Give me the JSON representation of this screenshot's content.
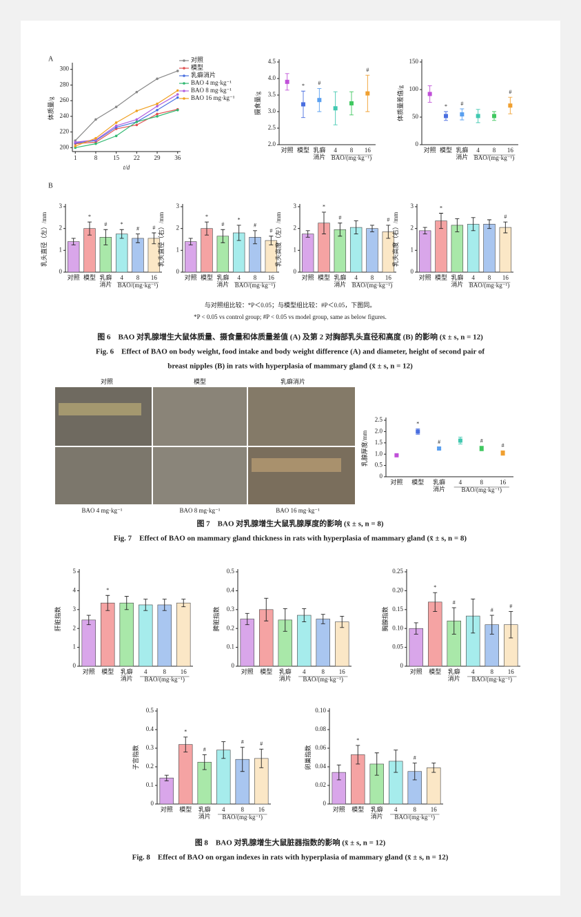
{
  "panel_labels": [
    "A",
    "B"
  ],
  "group_colors": [
    "#d9a6ea",
    "#f5a3a3",
    "#a9e8a9",
    "#a6ecec",
    "#a9c6f0",
    "#fbe7c6"
  ],
  "point_colors": [
    "#c050d8",
    "#4a6fe0",
    "#5aa0f0",
    "#40c8b0",
    "#40c860",
    "#f0a030"
  ],
  "chart_data": [
    {
      "type": "line",
      "ylabel": "体质量/g",
      "xlabel": "t/d",
      "x": [
        1,
        8,
        15,
        22,
        29,
        36
      ],
      "xlim": [
        0,
        37
      ],
      "xticks": [
        1,
        8,
        15,
        22,
        29,
        36
      ],
      "ylim": [
        195,
        305
      ],
      "yticks": [
        200,
        220,
        240,
        260,
        280,
        300
      ],
      "legend": "upper right",
      "series": [
        {
          "name": "对照",
          "color": "#888888",
          "values": [
            209,
            236,
            252,
            271,
            288,
            298
          ]
        },
        {
          "name": "模型",
          "color": "#e05050",
          "values": [
            205,
            207,
            224,
            229,
            243,
            249
          ]
        },
        {
          "name": "乳癖消片",
          "color": "#4a70e0",
          "values": [
            206,
            209,
            226,
            233,
            248,
            264
          ]
        },
        {
          "name": "BAO 4 mg·kg⁻¹",
          "color": "#30b870",
          "values": [
            200,
            205,
            215,
            233,
            240,
            248
          ]
        },
        {
          "name": "BAO 8 mg·kg⁻¹",
          "color": "#b060e0",
          "values": [
            207,
            210,
            228,
            236,
            253,
            268
          ]
        },
        {
          "name": "BAO 16 mg·kg⁻¹",
          "color": "#f0a020",
          "values": [
            202,
            212,
            232,
            247,
            256,
            273
          ]
        }
      ]
    },
    {
      "type": "errorbar",
      "ylabel": "摄食量/g",
      "categories": [
        "对照",
        "模型",
        "乳癖消片",
        "4",
        "8",
        "16"
      ],
      "group_label": "BAO/(mg·kg⁻¹)",
      "ylim": [
        2,
        4.5
      ],
      "yticks": [
        {
          "value": 2,
          "label": "2.0"
        },
        2.5,
        {
          "value": 3,
          "label": "3.0"
        },
        3.5,
        {
          "value": 4,
          "label": "4.0"
        },
        4.5
      ],
      "values": [
        3.9,
        3.22,
        3.35,
        3.1,
        3.25,
        3.55
      ],
      "errors": [
        0.25,
        0.4,
        0.35,
        0.5,
        0.35,
        0.55
      ],
      "annotations": [
        null,
        "*",
        "#",
        null,
        null,
        "#"
      ]
    },
    {
      "type": "errorbar",
      "ylabel": "体质量差值/g",
      "categories": [
        "对照",
        "模型",
        "乳癖消片",
        "4",
        "8",
        "16"
      ],
      "group_label": "BAO/(mg·kg⁻¹)",
      "ylim": [
        0,
        150
      ],
      "yticks": [
        0,
        50,
        100,
        150
      ],
      "values": [
        92,
        52,
        55,
        52,
        52,
        71
      ],
      "errors": [
        15,
        8,
        10,
        12,
        8,
        15
      ],
      "annotations": [
        null,
        "*",
        "#",
        null,
        null,
        "#"
      ]
    },
    {
      "type": "bar",
      "ylabel": "乳头直径（左）/mm",
      "categories": [
        "对照",
        "模型",
        "乳癖消片",
        "4",
        "8",
        "16"
      ],
      "group_label": "BAO/(mg·kg⁻¹)",
      "ylim": [
        0,
        3
      ],
      "yticks": [
        0,
        1,
        2,
        3
      ],
      "values": [
        1.4,
        2.0,
        1.6,
        1.75,
        1.55,
        1.55
      ],
      "errors": [
        0.15,
        0.3,
        0.35,
        0.2,
        0.2,
        0.25
      ],
      "annotations": [
        null,
        "*",
        "#",
        "*",
        "#",
        "#"
      ]
    },
    {
      "type": "bar",
      "ylabel": "乳头直径（右）/mm",
      "categories": [
        "对照",
        "模型",
        "乳癖消片",
        "4",
        "8",
        "16"
      ],
      "group_label": "BAO/(mg·kg⁻¹)",
      "ylim": [
        0,
        3
      ],
      "yticks": [
        0,
        1,
        2,
        3
      ],
      "values": [
        1.4,
        2.0,
        1.65,
        1.8,
        1.6,
        1.45
      ],
      "errors": [
        0.15,
        0.3,
        0.3,
        0.35,
        0.3,
        0.2
      ],
      "annotations": [
        null,
        "*",
        "#",
        "*",
        "#",
        "#"
      ]
    },
    {
      "type": "bar",
      "ylabel": "乳头高度（左）/mm",
      "categories": [
        "对照",
        "模型",
        "乳癖消片",
        "4",
        "8",
        "16"
      ],
      "group_label": "BAO/(mg·kg⁻¹)",
      "ylim": [
        0,
        3
      ],
      "yticks": [
        0,
        1,
        2,
        3
      ],
      "values": [
        1.75,
        2.25,
        1.95,
        2.05,
        2.0,
        1.85
      ],
      "errors": [
        0.15,
        0.5,
        0.3,
        0.3,
        0.15,
        0.3
      ],
      "annotations": [
        null,
        "*",
        "#",
        null,
        null,
        "#"
      ]
    },
    {
      "type": "bar",
      "ylabel": "乳头高度（右）/mm",
      "categories": [
        "对照",
        "模型",
        "乳癖消片",
        "4",
        "8",
        "16"
      ],
      "group_label": "BAO/(mg·kg⁻¹)",
      "ylim": [
        0,
        3
      ],
      "yticks": [
        0,
        1,
        2,
        3
      ],
      "values": [
        1.9,
        2.35,
        2.15,
        2.2,
        2.2,
        2.05
      ],
      "errors": [
        0.15,
        0.35,
        0.3,
        0.3,
        0.2,
        0.25
      ],
      "annotations": [
        null,
        "*",
        null,
        null,
        null,
        "#"
      ]
    },
    {
      "type": "errorbar",
      "ylabel": "乳腺厚度/mm",
      "categories": [
        "对照",
        "模型",
        "乳癖消片",
        "4",
        "8",
        "16"
      ],
      "group_label": "BAO/(mg·kg⁻¹)",
      "ylim": [
        0,
        2.5
      ],
      "yticks": [
        0,
        0.5,
        {
          "value": 1,
          "label": "1.0"
        },
        1.5,
        {
          "value": 2,
          "label": "2.0"
        },
        2.5
      ],
      "values": [
        0.95,
        2.0,
        1.25,
        1.6,
        1.25,
        1.05
      ],
      "errors": [
        0,
        0.12,
        0.05,
        0.15,
        0.1,
        0.1
      ],
      "annotations": [
        null,
        "*",
        "#",
        null,
        "#",
        "#"
      ]
    },
    {
      "type": "bar",
      "ylabel": "肝脏指数",
      "categories": [
        "对照",
        "模型",
        "乳癖消片",
        "4",
        "8",
        "16"
      ],
      "group_label": "BAO/(mg·kg⁻¹)",
      "ylim": [
        0,
        5
      ],
      "yticks": [
        0,
        1,
        2,
        3,
        4,
        5
      ],
      "values": [
        2.45,
        3.35,
        3.35,
        3.25,
        3.25,
        3.35
      ],
      "errors": [
        0.25,
        0.4,
        0.35,
        0.3,
        0.3,
        0.2
      ],
      "annotations": [
        null,
        "*",
        null,
        null,
        null,
        null
      ]
    },
    {
      "type": "bar",
      "ylabel": "脾脏指数",
      "categories": [
        "对照",
        "模型",
        "乳癖消片",
        "4",
        "8",
        "16"
      ],
      "group_label": "BAO/(mg·kg⁻¹)",
      "ylim": [
        0,
        0.5
      ],
      "yticks": [
        0,
        0.1,
        0.2,
        0.3,
        0.4,
        0.5
      ],
      "values": [
        0.25,
        0.3,
        0.245,
        0.27,
        0.25,
        0.235
      ],
      "errors": [
        0.03,
        0.06,
        0.06,
        0.035,
        0.025,
        0.03
      ],
      "annotations": [
        null,
        null,
        null,
        null,
        null,
        null
      ]
    },
    {
      "type": "bar",
      "ylabel": "胸腺指数",
      "categories": [
        "对照",
        "模型",
        "乳癖消片",
        "4",
        "8",
        "16"
      ],
      "group_label": "BAO/(mg·kg⁻¹)",
      "ylim": [
        0,
        0.25
      ],
      "yticks": [
        0,
        0.05,
        {
          "value": 0.1,
          "label": "0.10"
        },
        0.15,
        {
          "value": 0.2,
          "label": "0.20"
        },
        0.25
      ],
      "values": [
        0.1,
        0.17,
        0.12,
        0.133,
        0.11,
        0.11
      ],
      "errors": [
        0.015,
        0.025,
        0.035,
        0.045,
        0.025,
        0.035
      ],
      "annotations": [
        null,
        "*",
        "#",
        null,
        "#",
        "#"
      ]
    },
    {
      "type": "bar",
      "ylabel": "子宫指数",
      "categories": [
        "对照",
        "模型",
        "乳癖消片",
        "4",
        "8",
        "16"
      ],
      "group_label": "BAO/(mg·kg⁻¹)",
      "ylim": [
        0,
        0.5
      ],
      "yticks": [
        0,
        0.1,
        0.2,
        0.3,
        0.4,
        0.5
      ],
      "values": [
        0.14,
        0.32,
        0.225,
        0.29,
        0.24,
        0.245
      ],
      "errors": [
        0.015,
        0.04,
        0.04,
        0.045,
        0.065,
        0.05
      ],
      "annotations": [
        null,
        "*",
        "#",
        null,
        "#",
        "#"
      ]
    },
    {
      "type": "bar",
      "ylabel": "卵巢指数",
      "categories": [
        "对照",
        "模型",
        "乳癖消片",
        "4",
        "8",
        "16"
      ],
      "group_label": "BAO/(mg·kg⁻¹)",
      "ylim": [
        0,
        0.1
      ],
      "yticks": [
        0,
        0.02,
        0.04,
        0.06,
        0.08,
        {
          "value": 0.1,
          "label": "0.10"
        }
      ],
      "values": [
        0.034,
        0.053,
        0.043,
        0.046,
        0.035,
        0.039
      ],
      "errors": [
        0.008,
        0.01,
        0.012,
        0.012,
        0.009,
        0.005
      ],
      "annotations": [
        null,
        "*",
        null,
        null,
        "#",
        null
      ]
    }
  ],
  "image_labels": [
    "对照",
    "模型",
    "乳癖消片",
    "BAO 4 mg·kg⁻¹",
    "BAO 8 mg·kg⁻¹",
    "BAO 16 mg·kg⁻¹"
  ],
  "captions": {
    "note_cn": "与对照组比较：*P＜0.05；与模型组比较：#P＜0.05，下图同。",
    "note_en": "*P < 0.05 vs control group; #P < 0.05 vs model group, same as below figures.",
    "fig6_cn": "图 6　BAO 对乳腺增生大鼠体质量、摄食量和体质量差值 (A) 及第 2 对胸部乳头直径和高度 (B) 的影响 (x̄ ± s, n = 12)",
    "fig6_en_1": "Fig. 6　Effect of BAO on body weight, food intake and body weight difference (A) and diameter, height of second pair of",
    "fig6_en_2": "breast nipples (B) in rats with hyperplasia of mammary gland (x̄ ± s, n = 12)",
    "fig7_cn": "图 7　BAO 对乳腺增生大鼠乳腺厚度的影响 (x̄ ± s, n = 8)",
    "fig7_en": "Fig. 7　Effect of BAO on mammary gland thickness in rats with hyperplasia of mammary gland (x̄ ± s, n = 8)",
    "fig8_cn": "图 8　BAO 对乳腺增生大鼠脏器指数的影响 (x̄ ± s, n = 12)",
    "fig8_en": "Fig. 8　Effect of BAO on organ indexes in rats with hyperplasia of mammary gland (x̄ ± s, n = 12)"
  }
}
